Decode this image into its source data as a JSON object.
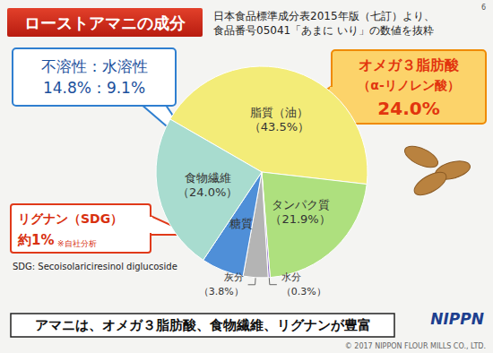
{
  "chart_data": {
    "type": "pie",
    "title": "ローストアマニの成分",
    "source": [
      "日本食品標準成分表2015年版（七訂）より、",
      "食品番号05041「あまに いり」の数値を抜粋"
    ],
    "page": 6,
    "categories": [
      "脂質（油）",
      "タンパク質",
      "水分",
      "灰分",
      "糖質",
      "食物繊維"
    ],
    "values": [
      43.5,
      21.9,
      0.3,
      3.8,
      6.5,
      24.0
    ],
    "value_labels": [
      "（43.5%）",
      "（21.9%）",
      "（0.3%）",
      "（3.8%）",
      null,
      "（24.0%）"
    ],
    "colors": [
      "#f3ec78",
      "#aee07e",
      "#8a6cc6",
      "#b4b4b4",
      "#4f8fd8",
      "#a8dccf"
    ],
    "data_labels": true,
    "annotations": [
      {
        "text": [
          "不溶性：水溶性",
          "14.8%：9.1%"
        ]
      },
      {
        "text": [
          "オメガ３脂肪酸",
          "（α-リノレン酸）",
          "24.0%"
        ]
      },
      {
        "text": [
          "リグナン（SDG）",
          "約1%"
        ],
        "note": "※自社分析"
      },
      {
        "text": [
          "SDG: Secoisolariciresinol diglucoside"
        ]
      }
    ],
    "footer": "アマニは、オメガ３脂肪酸、食物繊維、リグナンが豊富",
    "logo": "NIPPN",
    "copyright": "© 2017 NIPPON FLOUR MILLS CO., LTD."
  }
}
